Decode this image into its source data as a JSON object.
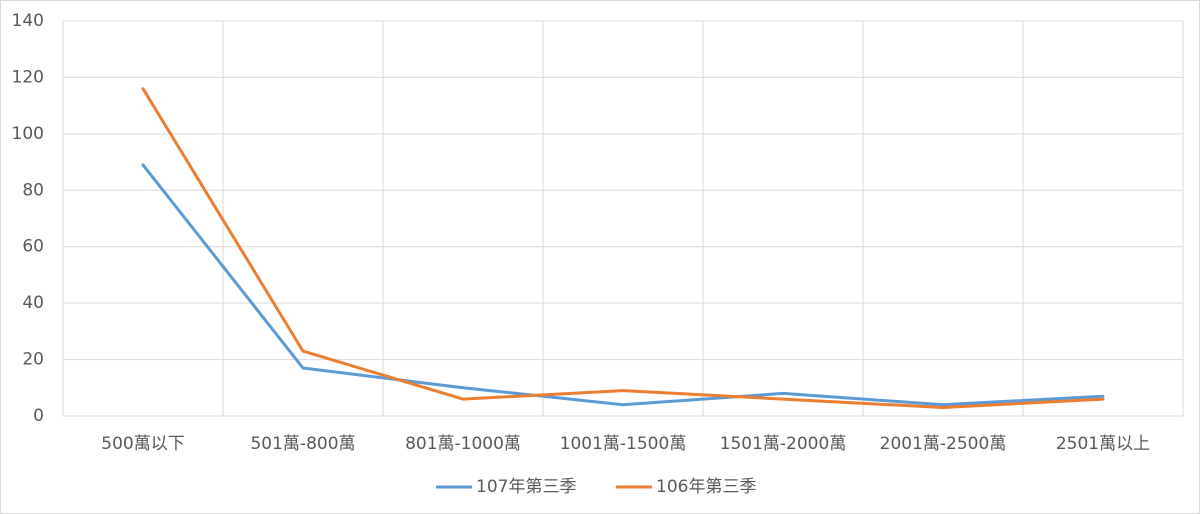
{
  "chart_data": {
    "type": "line",
    "categories": [
      "500萬以下",
      "501萬-800萬",
      "801萬-1000萬",
      "1001萬-1500萬",
      "1501萬-2000萬",
      "2001萬-2500萬",
      "2501萬以上"
    ],
    "series": [
      {
        "name": "107年第三季",
        "color": "#5b9bd5",
        "values": [
          89,
          17,
          10,
          4,
          8,
          4,
          7
        ]
      },
      {
        "name": "106年第三季",
        "color": "#ed7d31",
        "values": [
          116,
          23,
          6,
          9,
          6,
          3,
          6
        ]
      }
    ],
    "ylim": [
      0,
      140
    ],
    "yticks": [
      0,
      20,
      40,
      60,
      80,
      100,
      120,
      140
    ],
    "grid": true,
    "legend": "bottom"
  }
}
